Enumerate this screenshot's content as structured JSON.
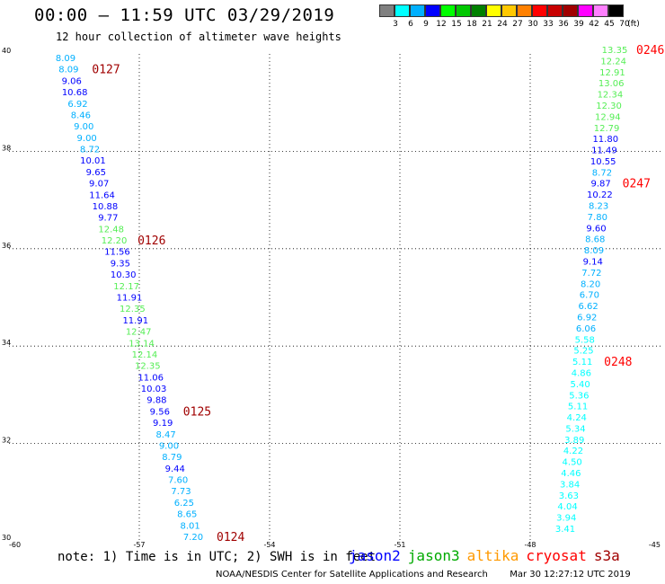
{
  "header": {
    "title": "00:00 – 11:59 UTC 03/29/2019",
    "subtitle": "12 hour collection of altimeter wave heights"
  },
  "legend": {
    "unit": "(ft)",
    "bins": [
      {
        "label": "3",
        "color": "#808080"
      },
      {
        "label": "6",
        "color": "#00ffff"
      },
      {
        "label": "9",
        "color": "#00b0ff"
      },
      {
        "label": "12",
        "color": "#0000ff"
      },
      {
        "label": "15",
        "color": "#00ff00"
      },
      {
        "label": "18",
        "color": "#00c800"
      },
      {
        "label": "21",
        "color": "#008000"
      },
      {
        "label": "24",
        "color": "#ffff00"
      },
      {
        "label": "27",
        "color": "#ffc800"
      },
      {
        "label": "30",
        "color": "#ff8000"
      },
      {
        "label": "33",
        "color": "#ff0000"
      },
      {
        "label": "36",
        "color": "#c80000"
      },
      {
        "label": "39",
        "color": "#a00000"
      },
      {
        "label": "42",
        "color": "#ff00ff"
      },
      {
        "label": "45",
        "color": "#ff80ff"
      },
      {
        "label": "70",
        "color": "#000000"
      }
    ]
  },
  "map": {
    "lon_range": [
      -60,
      -45
    ],
    "lat_range": [
      30,
      40
    ],
    "lon_ticks": [
      "-60",
      "-57",
      "-54",
      "-51",
      "-48",
      "-45"
    ],
    "lat_ticks": [
      "30",
      "32",
      "34",
      "36",
      "38",
      "40"
    ],
    "pass_color_jason3": "#a00000",
    "pass_color_cryosat": "#ff0000",
    "west_track": {
      "values": [
        {
          "v": "8.09",
          "c": "#00b0ff"
        },
        {
          "v": "8.09",
          "c": "#00b0ff"
        },
        {
          "v": "9.06",
          "c": "#0000ff"
        },
        {
          "v": "10.68",
          "c": "#0000ff"
        },
        {
          "v": "6.92",
          "c": "#00b0ff"
        },
        {
          "v": "8.46",
          "c": "#00b0ff"
        },
        {
          "v": "9.00",
          "c": "#00b0ff"
        },
        {
          "v": "9.00",
          "c": "#00b0ff"
        },
        {
          "v": "8.72",
          "c": "#00b0ff"
        },
        {
          "v": "10.01",
          "c": "#0000ff"
        },
        {
          "v": "9.65",
          "c": "#0000ff"
        },
        {
          "v": "9.07",
          "c": "#0000ff"
        },
        {
          "v": "11.64",
          "c": "#0000ff"
        },
        {
          "v": "10.88",
          "c": "#0000ff"
        },
        {
          "v": "9.77",
          "c": "#0000ff"
        },
        {
          "v": "12.48",
          "c": "#55ee55"
        },
        {
          "v": "12.20",
          "c": "#55ee55"
        },
        {
          "v": "11.56",
          "c": "#0000ff"
        },
        {
          "v": "9.35",
          "c": "#0000ff"
        },
        {
          "v": "10.30",
          "c": "#0000ff"
        },
        {
          "v": "12.17",
          "c": "#55ee55"
        },
        {
          "v": "11.91",
          "c": "#0000ff"
        },
        {
          "v": "12.35",
          "c": "#55ee55"
        },
        {
          "v": "11.91",
          "c": "#0000ff"
        },
        {
          "v": "12.47",
          "c": "#55ee55"
        },
        {
          "v": "13.14",
          "c": "#55ee55"
        },
        {
          "v": "12.14",
          "c": "#55ee55"
        },
        {
          "v": "12.35",
          "c": "#55ee55"
        },
        {
          "v": "11.06",
          "c": "#0000ff"
        },
        {
          "v": "10.03",
          "c": "#0000ff"
        },
        {
          "v": "9.88",
          "c": "#0000ff"
        },
        {
          "v": "9.56",
          "c": "#0000ff"
        },
        {
          "v": "9.19",
          "c": "#0000ff"
        },
        {
          "v": "8.47",
          "c": "#00b0ff"
        },
        {
          "v": "9.00",
          "c": "#00b0ff"
        },
        {
          "v": "8.79",
          "c": "#00b0ff"
        },
        {
          "v": "9.44",
          "c": "#0000ff"
        },
        {
          "v": "7.60",
          "c": "#00b0ff"
        },
        {
          "v": "7.73",
          "c": "#00b0ff"
        },
        {
          "v": "6.25",
          "c": "#00b0ff"
        },
        {
          "v": "8.65",
          "c": "#00b0ff"
        },
        {
          "v": "8.01",
          "c": "#00b0ff"
        },
        {
          "v": "7.20",
          "c": "#00b0ff"
        }
      ],
      "passes": [
        {
          "label": "0127",
          "index": 1
        },
        {
          "label": "0126",
          "index": 16
        },
        {
          "label": "0125",
          "index": 31
        },
        {
          "label": "0124",
          "index": 42
        }
      ]
    },
    "east_track": {
      "values": [
        {
          "v": "13.35",
          "c": "#55ee55"
        },
        {
          "v": "12.24",
          "c": "#55ee55"
        },
        {
          "v": "12.91",
          "c": "#55ee55"
        },
        {
          "v": "13.06",
          "c": "#55ee55"
        },
        {
          "v": "12.34",
          "c": "#55ee55"
        },
        {
          "v": "12.30",
          "c": "#55ee55"
        },
        {
          "v": "12.94",
          "c": "#55ee55"
        },
        {
          "v": "12.79",
          "c": "#55ee55"
        },
        {
          "v": "11.80",
          "c": "#0000ff"
        },
        {
          "v": "11.49",
          "c": "#0000ff"
        },
        {
          "v": "10.55",
          "c": "#0000ff"
        },
        {
          "v": "8.72",
          "c": "#00b0ff"
        },
        {
          "v": "9.87",
          "c": "#0000ff"
        },
        {
          "v": "10.22",
          "c": "#0000ff"
        },
        {
          "v": "8.23",
          "c": "#00b0ff"
        },
        {
          "v": "7.80",
          "c": "#00b0ff"
        },
        {
          "v": "9.60",
          "c": "#0000ff"
        },
        {
          "v": "8.68",
          "c": "#00b0ff"
        },
        {
          "v": "8.09",
          "c": "#00b0ff"
        },
        {
          "v": "9.14",
          "c": "#0000ff"
        },
        {
          "v": "7.72",
          "c": "#00b0ff"
        },
        {
          "v": "8.20",
          "c": "#00b0ff"
        },
        {
          "v": "6.70",
          "c": "#00b0ff"
        },
        {
          "v": "6.62",
          "c": "#00b0ff"
        },
        {
          "v": "6.92",
          "c": "#00b0ff"
        },
        {
          "v": "6.06",
          "c": "#00b0ff"
        },
        {
          "v": "5.58",
          "c": "#00ffff"
        },
        {
          "v": "5.25",
          "c": "#00ffff"
        },
        {
          "v": "5.11",
          "c": "#00ffff"
        },
        {
          "v": "4.86",
          "c": "#00ffff"
        },
        {
          "v": "5.40",
          "c": "#00ffff"
        },
        {
          "v": "5.36",
          "c": "#00ffff"
        },
        {
          "v": "5.11",
          "c": "#00ffff"
        },
        {
          "v": "4.24",
          "c": "#00ffff"
        },
        {
          "v": "5.34",
          "c": "#00ffff"
        },
        {
          "v": "3.89",
          "c": "#00ffff"
        },
        {
          "v": "4.22",
          "c": "#00ffff"
        },
        {
          "v": "4.50",
          "c": "#00ffff"
        },
        {
          "v": "4.46",
          "c": "#00ffff"
        },
        {
          "v": "3.84",
          "c": "#00ffff"
        },
        {
          "v": "3.63",
          "c": "#00ffff"
        },
        {
          "v": "4.04",
          "c": "#00ffff"
        },
        {
          "v": "3.94",
          "c": "#00ffff"
        },
        {
          "v": "3.41",
          "c": "#00ffff"
        }
      ],
      "passes": [
        {
          "label": "0246",
          "index": 0
        },
        {
          "label": "0247",
          "index": 12
        },
        {
          "label": "0248",
          "index": 28
        }
      ]
    }
  },
  "footer": {
    "note": "note: 1) Time is in UTC; 2) SWH is in feet",
    "satellites": [
      {
        "name": "jason2",
        "color": "#0000ff"
      },
      {
        "name": "jason3",
        "color": "#00aa00"
      },
      {
        "name": "altika",
        "color": "#ff9900"
      },
      {
        "name": "cryosat",
        "color": "#ff0000"
      },
      {
        "name": "s3a",
        "color": "#a00000"
      }
    ],
    "credit": "NOAA/NESDIS Center for Satellite Applications and Research",
    "timestamp": "Mar 30 12:27:12 UTC 2019"
  }
}
